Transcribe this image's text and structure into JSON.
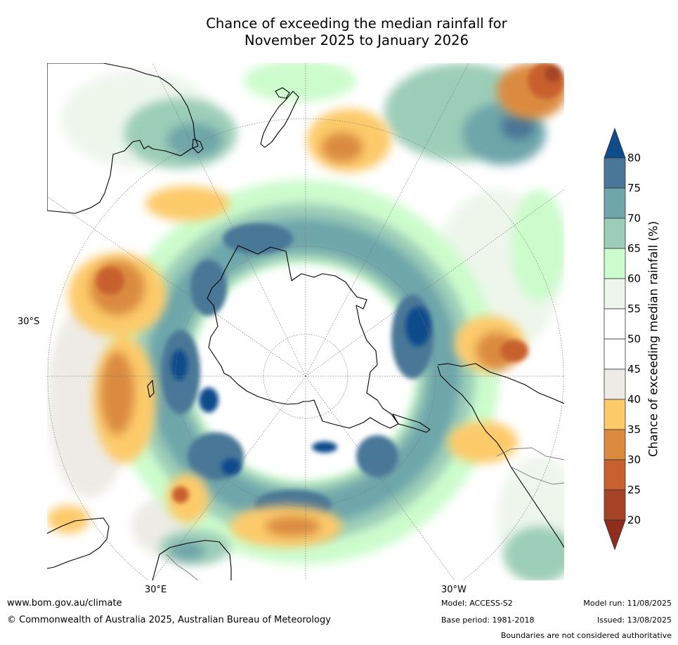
{
  "title": {
    "line1": "Chance of exceeding the median rainfall for",
    "line2": "November 2025 to January 2026"
  },
  "map": {
    "projection": "south-polar-stereographic",
    "lat_label": "30°S",
    "lon_labels": [
      "30°E",
      "30°W"
    ],
    "features": [
      "Antarctica",
      "Australia",
      "New Zealand",
      "South America",
      "Southern Africa"
    ]
  },
  "colorbar": {
    "label": "Chance of exceeding median rainfall (%)",
    "ticks": [
      "80",
      "75",
      "70",
      "65",
      "60",
      "55",
      "50",
      "45",
      "40",
      "35",
      "30",
      "25",
      "20"
    ],
    "bins": [
      {
        "from": 80,
        "to": null,
        "color": "#0e4c8c"
      },
      {
        "from": 75,
        "to": 80,
        "color": "#487797"
      },
      {
        "from": 70,
        "to": 75,
        "color": "#6ea6aa"
      },
      {
        "from": 65,
        "to": 70,
        "color": "#9ccdb8"
      },
      {
        "from": 60,
        "to": 65,
        "color": "#ccfccc"
      },
      {
        "from": 55,
        "to": 60,
        "color": "#eef6ec"
      },
      {
        "from": 50,
        "to": 55,
        "color": "#ffffff"
      },
      {
        "from": 45,
        "to": 50,
        "color": "#ffffff"
      },
      {
        "from": 40,
        "to": 45,
        "color": "#eeebe6"
      },
      {
        "from": 35,
        "to": 40,
        "color": "#fdca6a"
      },
      {
        "from": 30,
        "to": 35,
        "color": "#db8b40"
      },
      {
        "from": 25,
        "to": 30,
        "color": "#c8612f"
      },
      {
        "from": 20,
        "to": 25,
        "color": "#a64426"
      },
      {
        "from": null,
        "to": 20,
        "color": "#8f2e1c"
      }
    ]
  },
  "footer": {
    "url": "www.bom.gov.au/climate",
    "copyright": "© Commonwealth of Australia 2025, Australian Bureau of Meteorology",
    "model": "Model: ACCESS-S2",
    "base_period": "Base period: 1981-2018",
    "model_run": "Model run: 11/08/2025",
    "issued": "Issued: 13/08/2025",
    "disclaimer": "Boundaries are not considered authoritative"
  }
}
